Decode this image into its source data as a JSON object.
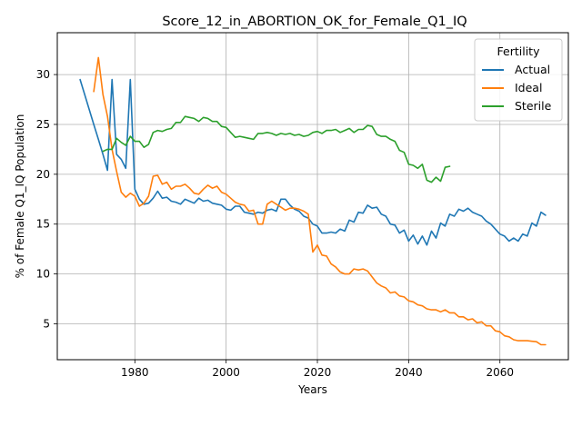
{
  "chart_data": {
    "type": "line",
    "title": "Score_12_in_ABORTION_OK_for_Female_Q1_IQ",
    "xlabel": "Years",
    "ylabel": "% of Female Q1_IQ Population",
    "xlim": [
      1963,
      2075
    ],
    "ylim": [
      1.4,
      34.2
    ],
    "xticks": [
      1980,
      2000,
      2020,
      2040,
      2060
    ],
    "yticks": [
      5,
      10,
      15,
      20,
      25,
      30
    ],
    "grid": true,
    "legend": {
      "title": "Fertility",
      "position": "top-right"
    },
    "series": [
      {
        "name": "Actual",
        "color": "#1f77b4",
        "points": [
          [
            1968,
            29.5
          ],
          [
            1969,
            28.0
          ],
          [
            1970,
            26.5
          ],
          [
            1971,
            25.0
          ],
          [
            1972,
            23.5
          ],
          [
            1973,
            22.0
          ],
          [
            1974,
            20.4
          ],
          [
            1975,
            29.5
          ],
          [
            1976,
            22.0
          ],
          [
            1977,
            21.5
          ],
          [
            1978,
            20.6
          ],
          [
            1979,
            29.5
          ],
          [
            1980,
            18.5
          ],
          [
            1981,
            17.5
          ],
          [
            1982,
            17.0
          ],
          [
            1983,
            17.1
          ],
          [
            1984,
            17.6
          ],
          [
            1985,
            18.3
          ],
          [
            1986,
            17.6
          ],
          [
            1987,
            17.7
          ],
          [
            1988,
            17.3
          ],
          [
            1989,
            17.2
          ],
          [
            1990,
            17.0
          ],
          [
            1991,
            17.5
          ],
          [
            1992,
            17.3
          ],
          [
            1993,
            17.1
          ],
          [
            1994,
            17.6
          ],
          [
            1995,
            17.3
          ],
          [
            1996,
            17.4
          ],
          [
            1997,
            17.1
          ],
          [
            1998,
            17.0
          ],
          [
            1999,
            16.9
          ],
          [
            2000,
            16.5
          ],
          [
            2001,
            16.4
          ],
          [
            2002,
            16.8
          ],
          [
            2003,
            16.8
          ],
          [
            2004,
            16.2
          ],
          [
            2005,
            16.1
          ],
          [
            2006,
            16.0
          ],
          [
            2007,
            16.2
          ],
          [
            2008,
            16.1
          ],
          [
            2009,
            16.4
          ],
          [
            2010,
            16.5
          ],
          [
            2011,
            16.3
          ],
          [
            2012,
            17.5
          ],
          [
            2013,
            17.5
          ],
          [
            2014,
            16.9
          ],
          [
            2015,
            16.5
          ],
          [
            2016,
            16.3
          ],
          [
            2017,
            15.8
          ],
          [
            2018,
            15.6
          ],
          [
            2019,
            15.0
          ],
          [
            2020,
            14.8
          ],
          [
            2021,
            14.1
          ],
          [
            2022,
            14.1
          ],
          [
            2023,
            14.2
          ],
          [
            2024,
            14.1
          ],
          [
            2025,
            14.5
          ],
          [
            2026,
            14.3
          ],
          [
            2027,
            15.4
          ],
          [
            2028,
            15.2
          ],
          [
            2029,
            16.2
          ],
          [
            2030,
            16.1
          ],
          [
            2031,
            16.9
          ],
          [
            2032,
            16.6
          ],
          [
            2033,
            16.7
          ],
          [
            2034,
            16.0
          ],
          [
            2035,
            15.8
          ],
          [
            2036,
            15.0
          ],
          [
            2037,
            14.9
          ],
          [
            2038,
            14.1
          ],
          [
            2039,
            14.4
          ],
          [
            2040,
            13.3
          ],
          [
            2041,
            13.9
          ],
          [
            2042,
            13.0
          ],
          [
            2043,
            13.8
          ],
          [
            2044,
            12.9
          ],
          [
            2045,
            14.3
          ],
          [
            2046,
            13.6
          ],
          [
            2047,
            15.1
          ],
          [
            2048,
            14.8
          ],
          [
            2049,
            16.0
          ],
          [
            2050,
            15.8
          ],
          [
            2051,
            16.5
          ],
          [
            2052,
            16.3
          ],
          [
            2053,
            16.6
          ],
          [
            2054,
            16.2
          ],
          [
            2055,
            16.0
          ],
          [
            2056,
            15.8
          ],
          [
            2057,
            15.3
          ],
          [
            2058,
            15.0
          ],
          [
            2059,
            14.5
          ],
          [
            2060,
            14.0
          ],
          [
            2061,
            13.8
          ],
          [
            2062,
            13.3
          ],
          [
            2063,
            13.6
          ],
          [
            2064,
            13.3
          ],
          [
            2065,
            14.0
          ],
          [
            2066,
            13.8
          ],
          [
            2067,
            15.1
          ],
          [
            2068,
            14.8
          ],
          [
            2069,
            16.2
          ],
          [
            2070,
            15.9
          ]
        ]
      },
      {
        "name": "Ideal",
        "color": "#ff7f0e",
        "points": [
          [
            1971,
            28.3
          ],
          [
            1972,
            31.7
          ],
          [
            1973,
            28.0
          ],
          [
            1974,
            25.8
          ],
          [
            1975,
            22.5
          ],
          [
            1976,
            20.3
          ],
          [
            1977,
            18.2
          ],
          [
            1978,
            17.7
          ],
          [
            1979,
            18.1
          ],
          [
            1980,
            17.8
          ],
          [
            1981,
            16.8
          ],
          [
            1982,
            17.1
          ],
          [
            1983,
            17.8
          ],
          [
            1984,
            19.8
          ],
          [
            1985,
            19.9
          ],
          [
            1986,
            19.0
          ],
          [
            1987,
            19.2
          ],
          [
            1988,
            18.5
          ],
          [
            1989,
            18.8
          ],
          [
            1990,
            18.8
          ],
          [
            1991,
            19.0
          ],
          [
            1992,
            18.6
          ],
          [
            1993,
            18.1
          ],
          [
            1994,
            18.0
          ],
          [
            1995,
            18.5
          ],
          [
            1996,
            18.9
          ],
          [
            1997,
            18.6
          ],
          [
            1998,
            18.8
          ],
          [
            1999,
            18.2
          ],
          [
            2000,
            18.0
          ],
          [
            2001,
            17.6
          ],
          [
            2002,
            17.2
          ],
          [
            2003,
            17.0
          ],
          [
            2004,
            16.9
          ],
          [
            2005,
            16.3
          ],
          [
            2006,
            16.4
          ],
          [
            2007,
            15.0
          ],
          [
            2008,
            15.0
          ],
          [
            2009,
            17.0
          ],
          [
            2010,
            17.3
          ],
          [
            2011,
            17.0
          ],
          [
            2012,
            16.7
          ],
          [
            2013,
            16.4
          ],
          [
            2014,
            16.6
          ],
          [
            2015,
            16.6
          ],
          [
            2016,
            16.5
          ],
          [
            2017,
            16.3
          ],
          [
            2018,
            16.0
          ],
          [
            2019,
            12.2
          ],
          [
            2020,
            12.9
          ],
          [
            2021,
            11.9
          ],
          [
            2022,
            11.8
          ],
          [
            2023,
            11.0
          ],
          [
            2024,
            10.7
          ],
          [
            2025,
            10.2
          ],
          [
            2026,
            10.0
          ],
          [
            2027,
            10.0
          ],
          [
            2028,
            10.5
          ],
          [
            2029,
            10.4
          ],
          [
            2030,
            10.5
          ],
          [
            2031,
            10.3
          ],
          [
            2032,
            9.7
          ],
          [
            2033,
            9.1
          ],
          [
            2034,
            8.8
          ],
          [
            2035,
            8.6
          ],
          [
            2036,
            8.1
          ],
          [
            2037,
            8.2
          ],
          [
            2038,
            7.8
          ],
          [
            2039,
            7.7
          ],
          [
            2040,
            7.3
          ],
          [
            2041,
            7.2
          ],
          [
            2042,
            6.9
          ],
          [
            2043,
            6.8
          ],
          [
            2044,
            6.5
          ],
          [
            2045,
            6.4
          ],
          [
            2046,
            6.4
          ],
          [
            2047,
            6.2
          ],
          [
            2048,
            6.4
          ],
          [
            2049,
            6.1
          ],
          [
            2050,
            6.1
          ],
          [
            2051,
            5.7
          ],
          [
            2052,
            5.7
          ],
          [
            2053,
            5.4
          ],
          [
            2054,
            5.5
          ],
          [
            2055,
            5.1
          ],
          [
            2056,
            5.2
          ],
          [
            2057,
            4.8
          ],
          [
            2058,
            4.8
          ],
          [
            2059,
            4.3
          ],
          [
            2060,
            4.2
          ],
          [
            2061,
            3.8
          ],
          [
            2062,
            3.7
          ],
          [
            2063,
            3.4
          ],
          [
            2064,
            3.3
          ],
          [
            2065,
            3.3
          ],
          [
            2066,
            3.3
          ],
          [
            2067,
            3.25
          ],
          [
            2068,
            3.2
          ],
          [
            2069,
            2.9
          ],
          [
            2070,
            2.9
          ]
        ]
      },
      {
        "name": "Sterile",
        "color": "#2ca02c",
        "points": [
          [
            1973,
            22.3
          ],
          [
            1974,
            22.5
          ],
          [
            1975,
            22.5
          ],
          [
            1976,
            23.6
          ],
          [
            1977,
            23.2
          ],
          [
            1978,
            22.9
          ],
          [
            1979,
            23.8
          ],
          [
            1980,
            23.3
          ],
          [
            1981,
            23.3
          ],
          [
            1982,
            22.7
          ],
          [
            1983,
            23.0
          ],
          [
            1984,
            24.2
          ],
          [
            1985,
            24.4
          ],
          [
            1986,
            24.3
          ],
          [
            1987,
            24.5
          ],
          [
            1988,
            24.6
          ],
          [
            1989,
            25.2
          ],
          [
            1990,
            25.2
          ],
          [
            1991,
            25.8
          ],
          [
            1992,
            25.7
          ],
          [
            1993,
            25.6
          ],
          [
            1994,
            25.3
          ],
          [
            1995,
            25.7
          ],
          [
            1996,
            25.6
          ],
          [
            1997,
            25.3
          ],
          [
            1998,
            25.3
          ],
          [
            1999,
            24.8
          ],
          [
            2000,
            24.7
          ],
          [
            2001,
            24.2
          ],
          [
            2002,
            23.7
          ],
          [
            2003,
            23.8
          ],
          [
            2004,
            23.7
          ],
          [
            2005,
            23.6
          ],
          [
            2006,
            23.5
          ],
          [
            2007,
            24.1
          ],
          [
            2008,
            24.1
          ],
          [
            2009,
            24.2
          ],
          [
            2010,
            24.1
          ],
          [
            2011,
            23.9
          ],
          [
            2012,
            24.1
          ],
          [
            2013,
            24.0
          ],
          [
            2014,
            24.1
          ],
          [
            2015,
            23.9
          ],
          [
            2016,
            24.0
          ],
          [
            2017,
            23.8
          ],
          [
            2018,
            23.9
          ],
          [
            2019,
            24.2
          ],
          [
            2020,
            24.3
          ],
          [
            2021,
            24.1
          ],
          [
            2022,
            24.4
          ],
          [
            2023,
            24.4
          ],
          [
            2024,
            24.5
          ],
          [
            2025,
            24.2
          ],
          [
            2026,
            24.4
          ],
          [
            2027,
            24.6
          ],
          [
            2028,
            24.2
          ],
          [
            2029,
            24.5
          ],
          [
            2030,
            24.5
          ],
          [
            2031,
            24.9
          ],
          [
            2032,
            24.8
          ],
          [
            2033,
            24.0
          ],
          [
            2034,
            23.8
          ],
          [
            2035,
            23.8
          ],
          [
            2036,
            23.5
          ],
          [
            2037,
            23.3
          ],
          [
            2038,
            22.4
          ],
          [
            2039,
            22.2
          ],
          [
            2040,
            21.0
          ],
          [
            2041,
            20.9
          ],
          [
            2042,
            20.6
          ],
          [
            2043,
            21.0
          ],
          [
            2044,
            19.4
          ],
          [
            2045,
            19.2
          ],
          [
            2046,
            19.7
          ],
          [
            2047,
            19.3
          ],
          [
            2048,
            20.7
          ],
          [
            2049,
            20.8
          ]
        ]
      }
    ]
  }
}
